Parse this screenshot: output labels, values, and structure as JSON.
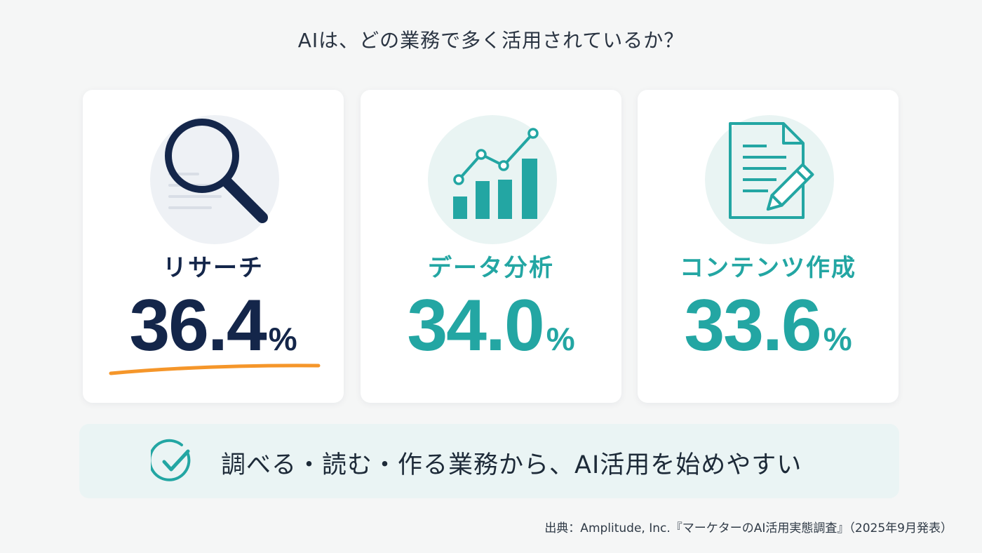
{
  "headline": "AIは、どの業務で多く活用されているか？",
  "cards": [
    {
      "icon": "magnifier-icon",
      "label": "リサーチ",
      "value": "36.4",
      "unit": "%",
      "color": "#14264a",
      "highlight_color": "#f5962a"
    },
    {
      "icon": "chart-growth-icon",
      "label": "データ分析",
      "value": "34.0",
      "unit": "%",
      "color": "#23a6a3"
    },
    {
      "icon": "document-pencil-icon",
      "label": "コンテンツ作成",
      "value": "33.6",
      "unit": "%",
      "color": "#23a6a3"
    }
  ],
  "banner": {
    "icon": "check-circle-icon",
    "text": "調べる・読む・作る業務から、AI活用を始めやすい"
  },
  "source": "出典：Amplitude, Inc.『マーケターのAI活用実態調査』（2025年9月発表）"
}
